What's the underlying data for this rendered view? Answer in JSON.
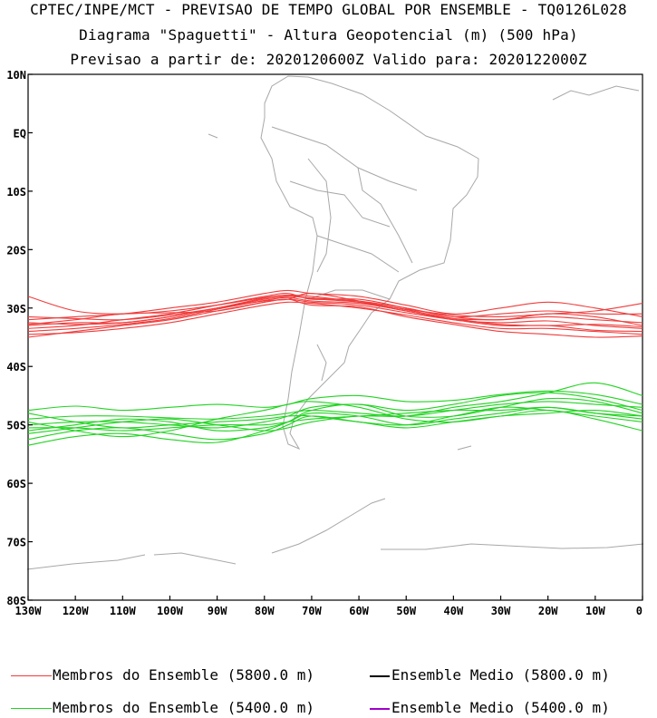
{
  "header": {
    "line1": "CPTEC/INPE/MCT - PREVISAO DE TEMPO GLOBAL POR ENSEMBLE - TQ0126L028",
    "line2": "Diagrama \"Spaguetti\" - Altura Geopotencial (m) (500 hPa)",
    "line3": "Previsao a partir de: 2020120600Z  Valido para: 2020122000Z"
  },
  "chart_data": {
    "type": "line",
    "title": "Diagrama \"Spaguetti\" - Altura Geopotencial (m) (500 hPa)",
    "xlabel": "",
    "ylabel": "",
    "xlim": [
      -130,
      0
    ],
    "ylim": [
      -80,
      10
    ],
    "x_ticks": [
      {
        "value": -130,
        "label": "130W"
      },
      {
        "value": -120,
        "label": "120W"
      },
      {
        "value": -110,
        "label": "110W"
      },
      {
        "value": -100,
        "label": "100W"
      },
      {
        "value": -90,
        "label": "90W"
      },
      {
        "value": -80,
        "label": "80W"
      },
      {
        "value": -70,
        "label": "70W"
      },
      {
        "value": -60,
        "label": "60W"
      },
      {
        "value": -50,
        "label": "50W"
      },
      {
        "value": -40,
        "label": "40W"
      },
      {
        "value": -30,
        "label": "30W"
      },
      {
        "value": -20,
        "label": "20W"
      },
      {
        "value": -10,
        "label": "10W"
      },
      {
        "value": 0,
        "label": "0"
      }
    ],
    "y_ticks": [
      {
        "value": 10,
        "label": "10N"
      },
      {
        "value": 0,
        "label": "EQ"
      },
      {
        "value": -10,
        "label": "10S"
      },
      {
        "value": -20,
        "label": "20S"
      },
      {
        "value": -30,
        "label": "30S"
      },
      {
        "value": -40,
        "label": "40S"
      },
      {
        "value": -50,
        "label": "50S"
      },
      {
        "value": -60,
        "label": "60S"
      },
      {
        "value": -70,
        "label": "70S"
      },
      {
        "value": -80,
        "label": "80S"
      }
    ],
    "contour_groups": [
      {
        "name": "Membros do Ensemble (5800.0 m)",
        "color": "#f03c3c",
        "x": [
          -130,
          -120,
          -110,
          -100,
          -90,
          -80,
          -75,
          -70,
          -60,
          -50,
          -40,
          -30,
          -20,
          -10,
          0
        ],
        "members": [
          [
            -31.5,
            -31.8,
            -32.0,
            -31.2,
            -30.0,
            -28.5,
            -28.0,
            -28.3,
            -28.8,
            -30.0,
            -31.5,
            -31.0,
            -30.5,
            -31.0,
            -31.0
          ],
          [
            -32.5,
            -32.8,
            -32.5,
            -31.5,
            -30.0,
            -28.3,
            -27.8,
            -28.0,
            -29.0,
            -30.5,
            -31.8,
            -32.0,
            -31.5,
            -32.0,
            -32.5
          ],
          [
            -33.5,
            -33.0,
            -32.0,
            -31.0,
            -29.5,
            -28.0,
            -27.5,
            -28.5,
            -28.5,
            -30.0,
            -31.5,
            -32.0,
            -31.0,
            -31.5,
            -33.0
          ],
          [
            -34.0,
            -33.5,
            -32.8,
            -31.8,
            -30.2,
            -28.7,
            -28.2,
            -28.8,
            -29.2,
            -30.5,
            -32.0,
            -32.5,
            -32.2,
            -33.0,
            -33.5
          ],
          [
            -35.0,
            -34.0,
            -33.0,
            -32.0,
            -30.5,
            -29.0,
            -28.5,
            -29.0,
            -29.5,
            -30.8,
            -32.0,
            -33.0,
            -33.0,
            -33.8,
            -34.0
          ],
          [
            -34.5,
            -34.2,
            -33.5,
            -32.5,
            -31.0,
            -29.5,
            -29.0,
            -29.2,
            -30.0,
            -31.2,
            -32.5,
            -33.5,
            -33.5,
            -34.0,
            -34.5
          ],
          [
            -32.0,
            -31.5,
            -31.0,
            -30.0,
            -29.0,
            -27.5,
            -27.0,
            -27.5,
            -28.0,
            -29.5,
            -31.0,
            -30.0,
            -29.0,
            -30.0,
            -31.5
          ],
          [
            -28.0,
            -30.5,
            -31.0,
            -30.5,
            -29.5,
            -28.2,
            -27.8,
            -28.4,
            -29.0,
            -30.2,
            -31.2,
            -31.5,
            -31.0,
            -30.5,
            -29.2
          ],
          [
            -32.8,
            -32.0,
            -31.0,
            -30.8,
            -30.5,
            -29.0,
            -28.5,
            -29.5,
            -29.8,
            -31.5,
            -32.8,
            -34.0,
            -34.5,
            -35.0,
            -34.8
          ],
          [
            -33.0,
            -32.5,
            -32.5,
            -31.5,
            -30.0,
            -28.8,
            -28.5,
            -27.5,
            -28.8,
            -30.3,
            -31.8,
            -32.8,
            -33.0,
            -32.8,
            -33.2
          ]
        ]
      },
      {
        "name": "Membros do Ensemble (5400.0 m)",
        "color": "#22d322",
        "x": [
          -130,
          -120,
          -110,
          -100,
          -90,
          -80,
          -75,
          -70,
          -60,
          -50,
          -40,
          -30,
          -20,
          -10,
          0
        ],
        "members": [
          [
            -47.5,
            -46.8,
            -47.5,
            -47.0,
            -46.5,
            -47.0,
            -46.5,
            -45.5,
            -45.0,
            -46.0,
            -45.8,
            -44.8,
            -44.2,
            -44.8,
            -46.5
          ],
          [
            -49.0,
            -48.5,
            -48.5,
            -48.8,
            -49.0,
            -48.5,
            -48.0,
            -47.5,
            -48.0,
            -48.5,
            -47.5,
            -46.5,
            -46.0,
            -46.5,
            -47.0
          ],
          [
            -50.0,
            -49.5,
            -49.5,
            -50.0,
            -50.5,
            -49.5,
            -48.5,
            -47.0,
            -46.5,
            -47.5,
            -46.5,
            -45.0,
            -44.5,
            -45.5,
            -47.5
          ],
          [
            -51.0,
            -50.0,
            -49.0,
            -49.5,
            -51.0,
            -50.5,
            -49.5,
            -48.0,
            -48.5,
            -50.0,
            -49.0,
            -48.0,
            -47.0,
            -48.0,
            -49.0
          ],
          [
            -52.5,
            -51.0,
            -50.5,
            -51.5,
            -52.5,
            -51.5,
            -50.0,
            -48.5,
            -49.5,
            -50.5,
            -49.5,
            -48.5,
            -48.0,
            -47.5,
            -48.5
          ],
          [
            -53.5,
            -52.0,
            -51.5,
            -52.5,
            -53.0,
            -51.0,
            -49.5,
            -47.5,
            -46.5,
            -48.5,
            -48.5,
            -47.0,
            -45.5,
            -46.0,
            -48.0
          ],
          [
            -49.5,
            -51.0,
            -52.0,
            -51.0,
            -49.0,
            -47.5,
            -46.5,
            -46.0,
            -47.0,
            -49.0,
            -49.5,
            -48.5,
            -47.5,
            -49.0,
            -51.0
          ],
          [
            -48.0,
            -49.5,
            -50.5,
            -50.0,
            -49.5,
            -49.0,
            -48.5,
            -48.5,
            -49.5,
            -50.0,
            -48.5,
            -47.0,
            -47.5,
            -48.5,
            -49.5
          ],
          [
            -50.5,
            -50.5,
            -51.0,
            -50.5,
            -50.0,
            -50.0,
            -49.5,
            -49.0,
            -48.5,
            -48.0,
            -47.5,
            -47.5,
            -47.0,
            -48.0,
            -48.5
          ],
          [
            -51.5,
            -50.5,
            -49.5,
            -49.0,
            -50.0,
            -51.0,
            -50.5,
            -49.5,
            -48.5,
            -48.5,
            -47.0,
            -46.0,
            -44.5,
            -42.8,
            -45.0
          ]
        ]
      }
    ],
    "legend": [
      {
        "label": "Membros do Ensemble (5800.0 m)",
        "color": "#f03c3c",
        "style": "thin"
      },
      {
        "label": "Ensemble Medio (5800.0 m)",
        "color": "#000000",
        "style": "thick"
      },
      {
        "label": "Membros do Ensemble (5400.0 m)",
        "color": "#22d322",
        "style": "thin"
      },
      {
        "label": "Ensemble Medio (5400.0 m)",
        "color": "#a000c8",
        "style": "thick"
      }
    ],
    "map_background": "coastlines and country borders (South America, Antarctica)"
  },
  "colors": {
    "map_lines": "#a8a8a8",
    "frame": "#000000"
  }
}
